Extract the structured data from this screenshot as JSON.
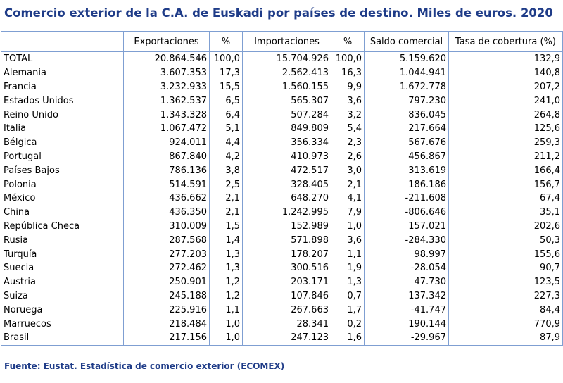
{
  "title": "Comercio exterior de la C.A. de Euskadi por países de destino. Miles de euros. 2020",
  "headers": [
    "",
    "Exportaciones",
    "%",
    "Importaciones",
    "%",
    "Saldo comercial",
    "Tasa de cobertura (%)"
  ],
  "rows": [
    [
      "TOTAL",
      "20.864.546",
      "100,0",
      "15.704.926",
      "100,0",
      "5.159.620",
      "132,9"
    ],
    [
      "Alemania",
      "3.607.353",
      "17,3",
      "2.562.413",
      "16,3",
      "1.044.941",
      "140,8"
    ],
    [
      "Francia",
      "3.232.933",
      "15,5",
      "1.560.155",
      "9,9",
      "1.672.778",
      "207,2"
    ],
    [
      "Estados Unidos",
      "1.362.537",
      "6,5",
      "565.307",
      "3,6",
      "797.230",
      "241,0"
    ],
    [
      "Reino Unido",
      "1.343.328",
      "6,4",
      "507.284",
      "3,2",
      "836.045",
      "264,8"
    ],
    [
      "Italia",
      "1.067.472",
      "5,1",
      "849.809",
      "5,4",
      "217.664",
      "125,6"
    ],
    [
      "Bélgica",
      "924.011",
      "4,4",
      "356.334",
      "2,3",
      "567.676",
      "259,3"
    ],
    [
      "Portugal",
      "867.840",
      "4,2",
      "410.973",
      "2,6",
      "456.867",
      "211,2"
    ],
    [
      "Países Bajos",
      "786.136",
      "3,8",
      "472.517",
      "3,0",
      "313.619",
      "166,4"
    ],
    [
      "Polonia",
      "514.591",
      "2,5",
      "328.405",
      "2,1",
      "186.186",
      "156,7"
    ],
    [
      "México",
      "436.662",
      "2,1",
      "648.270",
      "4,1",
      "-211.608",
      "67,4"
    ],
    [
      "China",
      "436.350",
      "2,1",
      "1.242.995",
      "7,9",
      "-806.646",
      "35,1"
    ],
    [
      "República Checa",
      "310.009",
      "1,5",
      "152.989",
      "1,0",
      "157.021",
      "202,6"
    ],
    [
      "Rusia",
      "287.568",
      "1,4",
      "571.898",
      "3,6",
      "-284.330",
      "50,3"
    ],
    [
      "Turquía",
      "277.203",
      "1,3",
      "178.207",
      "1,1",
      "98.997",
      "155,6"
    ],
    [
      "Suecia",
      "272.462",
      "1,3",
      "300.516",
      "1,9",
      "-28.054",
      "90,7"
    ],
    [
      "Austria",
      "250.901",
      "1,2",
      "203.171",
      "1,3",
      "47.730",
      "123,5"
    ],
    [
      "Suiza",
      "245.188",
      "1,2",
      "107.846",
      "0,7",
      "137.342",
      "227,3"
    ],
    [
      "Noruega",
      "225.916",
      "1,1",
      "267.663",
      "1,7",
      "-41.747",
      "84,4"
    ],
    [
      "Marruecos",
      "218.484",
      "1,0",
      "28.341",
      "0,2",
      "190.144",
      "770,9"
    ],
    [
      "Brasil",
      "217.156",
      "1,0",
      "247.123",
      "1,6",
      "-29.967",
      "87,9"
    ]
  ],
  "footer": "Fuente: Eustat. Estadística de comercio exterior (ECOMEX)",
  "colors": {
    "title": "#1f3c88",
    "grid": "#7f9fd2"
  }
}
